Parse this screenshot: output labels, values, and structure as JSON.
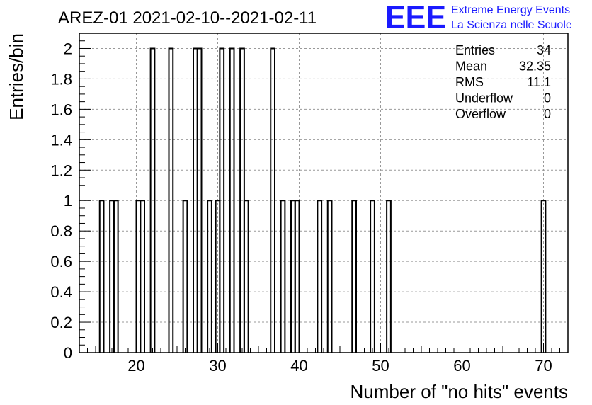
{
  "chart_data": {
    "type": "bar",
    "title": "AREZ-01 2021-02-10--2021-02-11",
    "xlabel": "Number of \"no hits\" events",
    "ylabel": "Entries/bin",
    "xlim": [
      13,
      73
    ],
    "ylim": [
      0,
      2.1
    ],
    "xticks": [
      20,
      30,
      40,
      50,
      60,
      70
    ],
    "yticks": [
      0,
      0.2,
      0.4,
      0.6,
      0.8,
      1,
      1.2,
      1.4,
      1.6,
      1.8,
      2
    ],
    "grid": true,
    "bin_width": 0.5,
    "bins": [
      {
        "x": 15.5,
        "value": 1
      },
      {
        "x": 16.75,
        "value": 1
      },
      {
        "x": 17.25,
        "value": 1
      },
      {
        "x": 20.0,
        "value": 1
      },
      {
        "x": 20.5,
        "value": 1
      },
      {
        "x": 21.75,
        "value": 2
      },
      {
        "x": 24.0,
        "value": 2
      },
      {
        "x": 25.75,
        "value": 1
      },
      {
        "x": 27.0,
        "value": 2
      },
      {
        "x": 27.5,
        "value": 2
      },
      {
        "x": 28.75,
        "value": 1
      },
      {
        "x": 29.75,
        "value": 1
      },
      {
        "x": 30.25,
        "value": 2
      },
      {
        "x": 31.5,
        "value": 2
      },
      {
        "x": 32.75,
        "value": 2
      },
      {
        "x": 33.25,
        "value": 1
      },
      {
        "x": 36.5,
        "value": 2
      },
      {
        "x": 37.75,
        "value": 1
      },
      {
        "x": 39.0,
        "value": 1
      },
      {
        "x": 39.5,
        "value": 1
      },
      {
        "x": 42.25,
        "value": 1
      },
      {
        "x": 43.5,
        "value": 1
      },
      {
        "x": 46.5,
        "value": 1
      },
      {
        "x": 48.75,
        "value": 1
      },
      {
        "x": 50.75,
        "value": 1
      },
      {
        "x": 69.75,
        "value": 1
      }
    ],
    "stats": [
      {
        "label": "Entries",
        "value": "34"
      },
      {
        "label": "Mean",
        "value": "32.35"
      },
      {
        "label": "RMS",
        "value": "11.1"
      },
      {
        "label": "Underflow",
        "value": "0"
      },
      {
        "label": "Overflow",
        "value": "0"
      }
    ]
  },
  "logo": {
    "mark": "EEE",
    "line1": "Extreme Energy Events",
    "line2": "La Scienza nelle Scuole"
  }
}
